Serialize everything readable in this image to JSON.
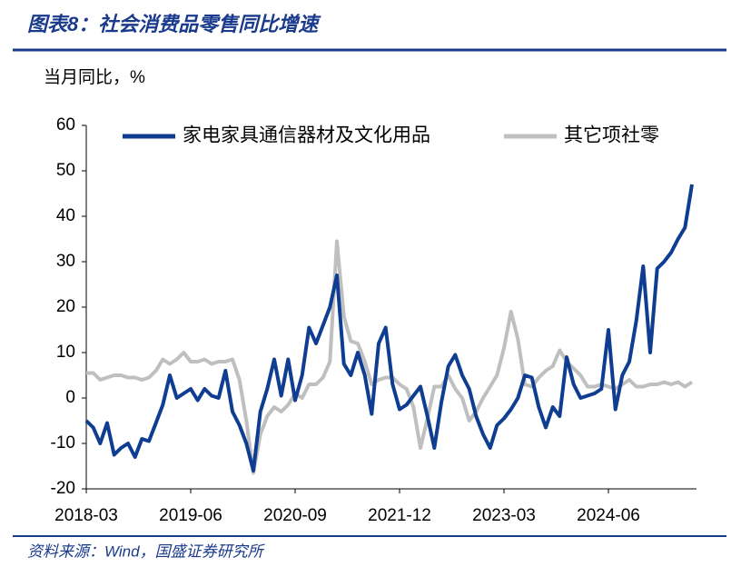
{
  "chart_data": {
    "type": "line",
    "title": "图表8：社会消费品零售同比增速",
    "y_label": "当月同比，%",
    "source": "资料来源：Wind，国盛证券研究所",
    "categories": [
      "2018-03",
      null,
      null,
      null,
      null,
      null,
      null,
      null,
      null,
      null,
      null,
      null,
      null,
      null,
      null,
      "2019-06",
      null,
      null,
      null,
      null,
      null,
      null,
      null,
      null,
      null,
      null,
      null,
      null,
      null,
      null,
      "2020-09",
      null,
      null,
      null,
      null,
      null,
      null,
      null,
      null,
      null,
      null,
      null,
      null,
      null,
      null,
      "2021-12",
      null,
      null,
      null,
      null,
      null,
      null,
      null,
      null,
      null,
      null,
      null,
      null,
      null,
      null,
      "2023-03",
      null,
      null,
      null,
      null,
      null,
      null,
      null,
      null,
      null,
      null,
      null,
      null,
      null,
      null,
      "2024-06",
      null,
      null,
      null,
      null,
      null,
      null,
      null,
      null,
      null,
      null,
      null,
      null
    ],
    "series": [
      {
        "name": "家电家具通信器材及文化用品",
        "color": "#0f3d91",
        "values": [
          -5,
          -6.5,
          -10,
          -5.5,
          -12.5,
          -11,
          -10,
          -13,
          -9,
          -9.5,
          -5.5,
          -1.5,
          5,
          0,
          1,
          2,
          -0.5,
          2,
          0.5,
          0,
          6,
          -3,
          -6,
          -10,
          -16,
          -3,
          2,
          8.5,
          0.5,
          8.5,
          -0.5,
          5,
          15.5,
          12,
          16,
          20,
          27,
          7.5,
          5,
          10,
          5,
          -3.5,
          12,
          15.5,
          3,
          -2.5,
          -1.5,
          0.5,
          2.5,
          -4,
          -11,
          -1,
          7,
          9.5,
          5,
          2,
          -4,
          -8,
          -11,
          -6,
          -4.5,
          -2.5,
          0,
          5,
          4.5,
          -2,
          -6.5,
          -2,
          -4,
          9,
          3,
          0,
          0.5,
          1,
          2,
          15,
          -2.5,
          5,
          8,
          17,
          29,
          10,
          28.5,
          30,
          32,
          35,
          37.5,
          47
        ]
      },
      {
        "name": "其它项社零",
        "color": "#bfbfbf",
        "values": [
          5.5,
          5.5,
          4,
          4.5,
          5,
          5,
          4.5,
          4.5,
          4,
          4.5,
          6,
          8.5,
          7.5,
          8.5,
          10,
          8,
          8,
          8.5,
          7.5,
          8,
          8,
          8.5,
          4,
          -5,
          -16.5,
          -8,
          -4,
          -2,
          -3,
          -1.5,
          1,
          0,
          3,
          3,
          4.5,
          8,
          34.5,
          18,
          12.5,
          12,
          8,
          3,
          4,
          4.5,
          4.5,
          3,
          2,
          -2,
          -11,
          -4.5,
          2.5,
          2.5,
          5,
          2,
          0,
          -5,
          -3,
          0,
          2.5,
          5,
          11,
          19,
          13,
          3,
          2.5,
          4.5,
          6,
          7,
          10.5,
          8,
          6.5,
          5,
          2.5,
          2.5,
          3,
          2.5,
          2,
          3,
          4,
          2.5,
          2.5,
          3,
          3,
          3.5,
          3,
          3.5,
          2.5,
          3.5
        ]
      }
    ],
    "ylim": [
      -20,
      60
    ],
    "yticks": [
      -20,
      -10,
      0,
      10,
      20,
      30,
      40,
      50,
      60
    ],
    "grid": false,
    "legend": "top"
  }
}
